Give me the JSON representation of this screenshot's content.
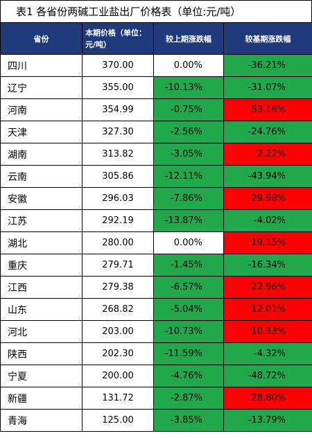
{
  "title": "表1 各省份两碱工业盐出厂价格表（单位:元/吨）",
  "columns": {
    "province": "省份",
    "price": "本期价格（单位：元/吨）",
    "prev_change": "较上期涨跌幅",
    "base_change": "较基期涨跌幅"
  },
  "colors": {
    "header_bg": "#1f3a7a",
    "positive": "#ff0000",
    "negative": "#21a84a",
    "neutral": "#ffffff"
  },
  "rows": [
    {
      "province": "四川",
      "price": "370.00",
      "prev_change": "0.00%",
      "base_change": "-36.21%"
    },
    {
      "province": "辽宁",
      "price": "355.00",
      "prev_change": "-10.13%",
      "base_change": "-31.07%"
    },
    {
      "province": "河南",
      "price": "354.99",
      "prev_change": "-0.75%",
      "base_change": "53.16%"
    },
    {
      "province": "天津",
      "price": "327.30",
      "prev_change": "-2.56%",
      "base_change": "-24.76%"
    },
    {
      "province": "湖南",
      "price": "313.82",
      "prev_change": "-3.05%",
      "base_change": "2.22%"
    },
    {
      "province": "云南",
      "price": "305.86",
      "prev_change": "-12.11%",
      "base_change": "-43.94%"
    },
    {
      "province": "安徽",
      "price": "296.03",
      "prev_change": "-7.86%",
      "base_change": "29.98%"
    },
    {
      "province": "江苏",
      "price": "292.19",
      "prev_change": "-13.87%",
      "base_change": "-4.02%"
    },
    {
      "province": "湖北",
      "price": "280.00",
      "prev_change": "0.00%",
      "base_change": "19.15%"
    },
    {
      "province": "重庆",
      "price": "279.71",
      "prev_change": "-1.45%",
      "base_change": "-16.34%"
    },
    {
      "province": "江西",
      "price": "279.38",
      "prev_change": "-6.57%",
      "base_change": "22.96%"
    },
    {
      "province": "山东",
      "price": "268.82",
      "prev_change": "-5.04%",
      "base_change": "12.01%"
    },
    {
      "province": "河北",
      "price": "203.00",
      "prev_change": "-10.73%",
      "base_change": "10.33%"
    },
    {
      "province": "陕西",
      "price": "202.30",
      "prev_change": "-11.59%",
      "base_change": "-4.32%"
    },
    {
      "province": "宁夏",
      "price": "200.00",
      "prev_change": "-4.76%",
      "base_change": "-48.72%"
    },
    {
      "province": "新疆",
      "price": "131.72",
      "prev_change": "-2.87%",
      "base_change": "28.80%"
    },
    {
      "province": "青海",
      "price": "125.00",
      "prev_change": "-3.85%",
      "base_change": "-13.79%"
    }
  ]
}
